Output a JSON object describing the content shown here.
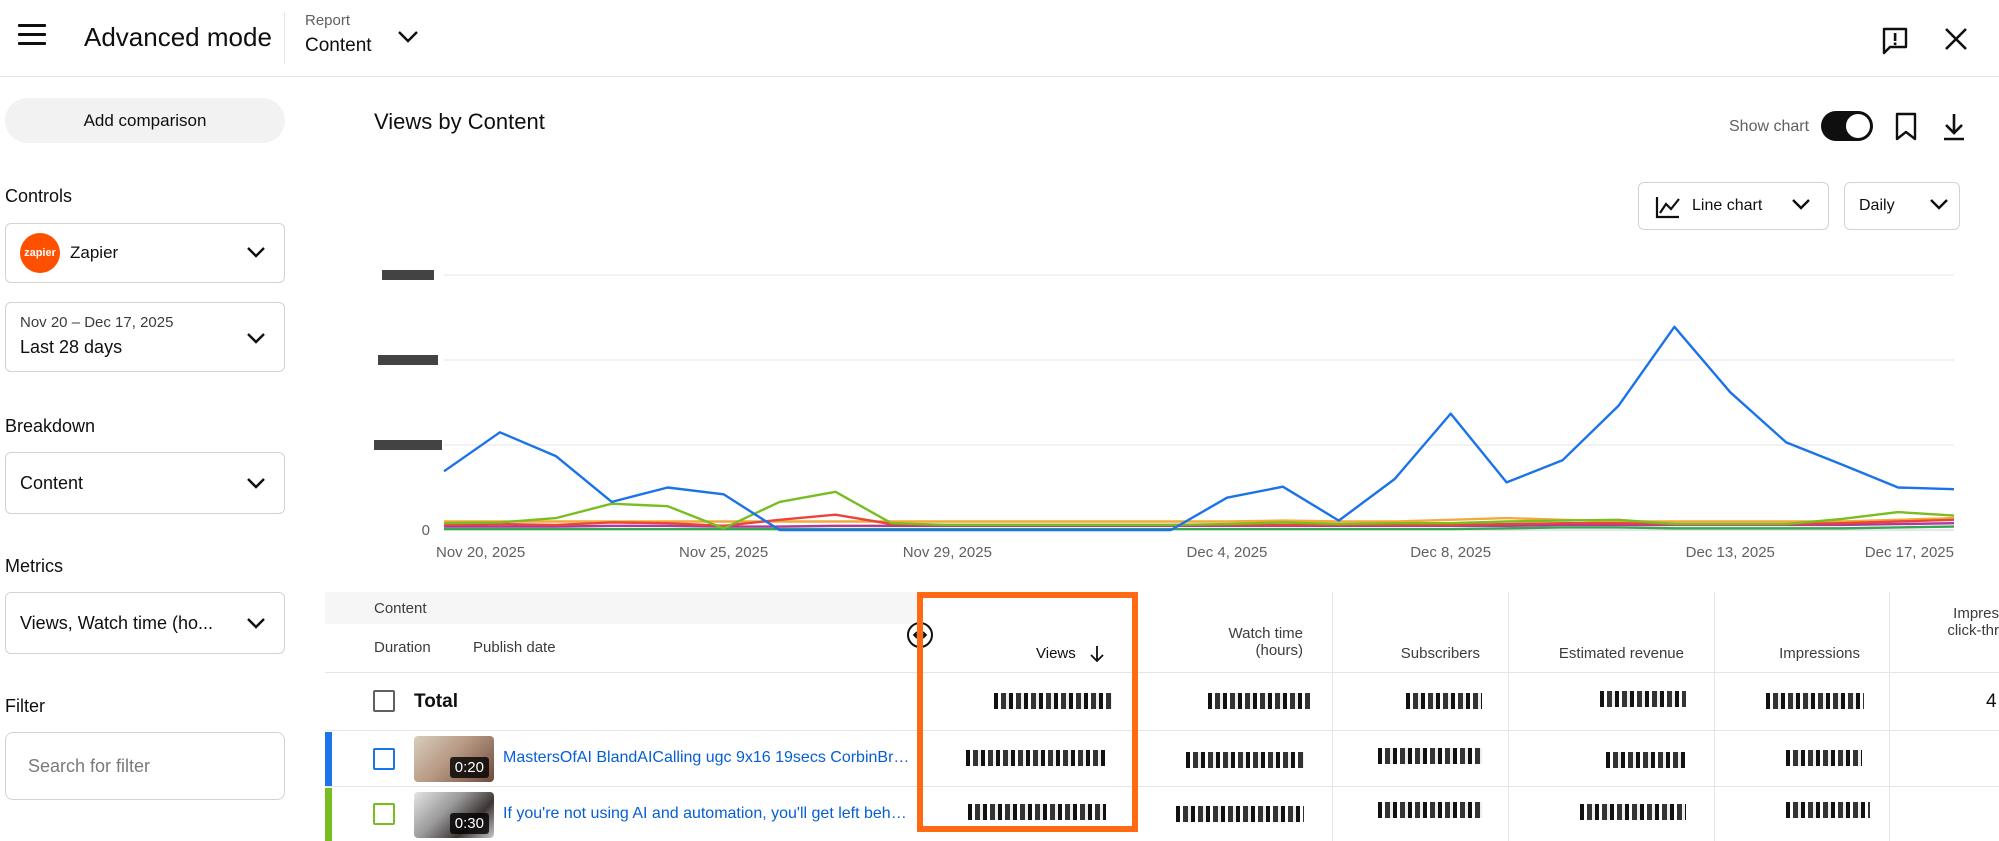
{
  "header": {
    "title": "Advanced mode",
    "report_label": "Report",
    "report_value": "Content"
  },
  "sidebar": {
    "add_comparison": "Add comparison",
    "controls_title": "Controls",
    "channel_logo_text": "zapier",
    "channel_name": "Zapier",
    "date_range": "Nov 20 – Dec 17, 2025",
    "date_preset": "Last 28 days",
    "breakdown_title": "Breakdown",
    "breakdown_value": "Content",
    "metrics_title": "Metrics",
    "metrics_value": "Views, Watch time (ho...",
    "filter_title": "Filter",
    "filter_placeholder": "Search for filter"
  },
  "main": {
    "chart_title": "Views by Content",
    "show_chart_label": "Show chart",
    "chart_type": "Line chart",
    "granularity": "Daily"
  },
  "chart_data": {
    "type": "line",
    "x": [
      "Nov 20, 2025",
      "Nov 21",
      "Nov 22",
      "Nov 23",
      "Nov 24",
      "Nov 25, 2025",
      "Nov 26",
      "Nov 27",
      "Nov 28",
      "Nov 29, 2025",
      "Nov 30",
      "Dec 1",
      "Dec 2",
      "Dec 3",
      "Dec 4, 2025",
      "Dec 5",
      "Dec 6",
      "Dec 7",
      "Dec 8, 2025",
      "Dec 9",
      "Dec 10",
      "Dec 11",
      "Dec 12",
      "Dec 13, 2025",
      "Dec 14",
      "Dec 15",
      "Dec 16",
      "Dec 17, 2025"
    ],
    "x_ticks": [
      "Nov 20, 2025",
      "Nov 25, 2025",
      "Nov 29, 2025",
      "Dec 4, 2025",
      "Dec 8, 2025",
      "Dec 13, 2025",
      "Dec 17, 2025"
    ],
    "y_ticks": [
      "0"
    ],
    "ylim": [
      0,
      3
    ],
    "grid": true,
    "series": [
      {
        "color": "#1a73e8",
        "values": [
          0.69,
          1.15,
          0.87,
          0.33,
          0.5,
          0.42,
          0.0,
          0.0,
          0.0,
          0.0,
          0.0,
          0.0,
          0.0,
          0.0,
          0.38,
          0.51,
          0.11,
          0.6,
          1.37,
          0.56,
          0.82,
          1.46,
          2.39,
          1.62,
          1.03,
          0.77,
          0.5,
          0.48
        ]
      },
      {
        "color": "#78be20",
        "values": [
          0.08,
          0.09,
          0.14,
          0.31,
          0.28,
          0.02,
          0.33,
          0.45,
          0.08,
          0.06,
          0.06,
          0.06,
          0.06,
          0.06,
          0.07,
          0.09,
          0.07,
          0.08,
          0.08,
          0.1,
          0.11,
          0.12,
          0.07,
          0.07,
          0.07,
          0.13,
          0.21,
          0.17
        ]
      },
      {
        "color": "#e8453c",
        "values": [
          0.06,
          0.07,
          0.06,
          0.09,
          0.08,
          0.05,
          0.12,
          0.18,
          0.07,
          0.06,
          0.06,
          0.06,
          0.06,
          0.06,
          0.06,
          0.06,
          0.06,
          0.06,
          0.06,
          0.07,
          0.08,
          0.08,
          0.07,
          0.07,
          0.07,
          0.08,
          0.1,
          0.12
        ]
      },
      {
        "color": "#f4a93a",
        "values": [
          0.1,
          0.1,
          0.1,
          0.1,
          0.1,
          0.1,
          0.1,
          0.1,
          0.1,
          0.1,
          0.1,
          0.1,
          0.1,
          0.1,
          0.1,
          0.11,
          0.1,
          0.1,
          0.12,
          0.14,
          0.12,
          0.1,
          0.1,
          0.1,
          0.1,
          0.1,
          0.12,
          0.14
        ]
      },
      {
        "color": "#b0399a",
        "values": [
          0.04,
          0.04,
          0.04,
          0.05,
          0.05,
          0.04,
          0.04,
          0.05,
          0.05,
          0.05,
          0.05,
          0.05,
          0.05,
          0.05,
          0.05,
          0.05,
          0.05,
          0.05,
          0.05,
          0.05,
          0.06,
          0.06,
          0.06,
          0.06,
          0.06,
          0.06,
          0.07,
          0.08
        ]
      },
      {
        "color": "#34a853",
        "values": [
          0.01,
          0.01,
          0.01,
          0.01,
          0.01,
          0.01,
          0.01,
          0.01,
          0.01,
          0.01,
          0.01,
          0.01,
          0.01,
          0.01,
          0.01,
          0.01,
          0.01,
          0.01,
          0.01,
          0.02,
          0.03,
          0.03,
          0.02,
          0.02,
          0.02,
          0.02,
          0.03,
          0.04
        ]
      }
    ]
  },
  "table": {
    "col_content": "Content",
    "col_duration": "Duration",
    "col_publish": "Publish date",
    "col_views": "Views",
    "col_watch_1": "Watch time",
    "col_watch_2": "(hours)",
    "col_subscribers": "Subscribers",
    "col_revenue": "Estimated revenue",
    "col_impressions": "Impressions",
    "col_ctr_1": "Impres",
    "col_ctr_2": "click-thr",
    "total_label": "Total",
    "total_trailing": "4",
    "rows": [
      {
        "duration": "0:20",
        "title": "MastersOfAI BlandAICalling ugc 9x16 19secs CorbinBr…",
        "color": "#1a73e8"
      },
      {
        "duration": "0:30",
        "title": "If you're not using AI and automation, you'll get left beh…",
        "color": "#78be20"
      }
    ]
  },
  "colors": {
    "accent_highlight": "#ff6a13",
    "link": "#065fd4"
  }
}
